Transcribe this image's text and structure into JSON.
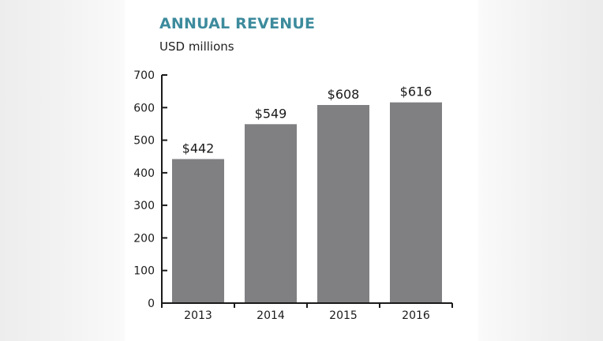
{
  "colors": {
    "title": "#3d8b9d",
    "bar": "#808083",
    "axis": "#1a1a1a",
    "text": "#1a1a1a"
  },
  "chart_data": {
    "type": "bar",
    "title": "ANNUAL REVENUE",
    "subtitle": "USD millions",
    "xlabel": "",
    "ylabel": "",
    "categories": [
      "2013",
      "2014",
      "2015",
      "2016"
    ],
    "values": [
      442,
      549,
      608,
      616
    ],
    "data_labels": [
      "$442",
      "$549",
      "$608",
      "$616"
    ],
    "ylim": [
      0,
      700
    ],
    "yticks": [
      0,
      100,
      200,
      300,
      400,
      500,
      600,
      700
    ],
    "grid": false,
    "legend": "none"
  }
}
